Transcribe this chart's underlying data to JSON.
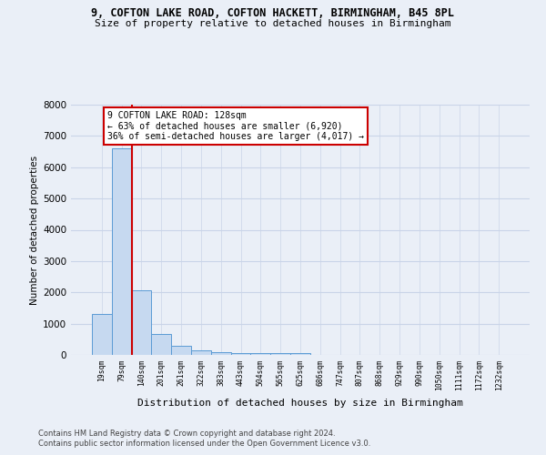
{
  "title1": "9, COFTON LAKE ROAD, COFTON HACKETT, BIRMINGHAM, B45 8PL",
  "title2": "Size of property relative to detached houses in Birmingham",
  "xlabel": "Distribution of detached houses by size in Birmingham",
  "ylabel": "Number of detached properties",
  "categories": [
    "19sqm",
    "79sqm",
    "140sqm",
    "201sqm",
    "261sqm",
    "322sqm",
    "383sqm",
    "443sqm",
    "504sqm",
    "565sqm",
    "625sqm",
    "686sqm",
    "747sqm",
    "807sqm",
    "868sqm",
    "929sqm",
    "990sqm",
    "1050sqm",
    "1111sqm",
    "1172sqm",
    "1232sqm"
  ],
  "bar_heights": [
    1300,
    6600,
    2080,
    680,
    280,
    140,
    90,
    55,
    55,
    55,
    55,
    0,
    0,
    0,
    0,
    0,
    0,
    0,
    0,
    0,
    0
  ],
  "bar_color": "#c6d9f0",
  "bar_edge_color": "#5b9bd5",
  "property_line_x": 1.5,
  "annotation_line1": "9 COFTON LAKE ROAD: 128sqm",
  "annotation_line2": "← 63% of detached houses are smaller (6,920)",
  "annotation_line3": "36% of semi-detached houses are larger (4,017) →",
  "vline_color": "#cc0000",
  "annotation_box_edge": "#cc0000",
  "ylim": [
    0,
    8000
  ],
  "yticks": [
    0,
    1000,
    2000,
    3000,
    4000,
    5000,
    6000,
    7000,
    8000
  ],
  "grid_color": "#c9d4e8",
  "footer1": "Contains HM Land Registry data © Crown copyright and database right 2024.",
  "footer2": "Contains public sector information licensed under the Open Government Licence v3.0.",
  "bg_color": "#eaeff7"
}
